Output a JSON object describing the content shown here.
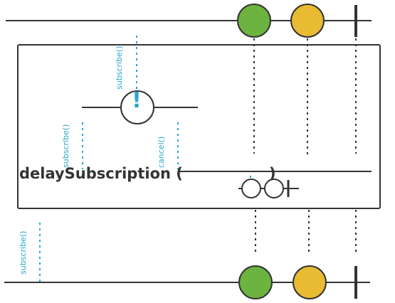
{
  "colors": {
    "line": "#333333",
    "signal": "#2aa6cf",
    "green": "#6db33f",
    "yellow": "#e8bb33",
    "white": "#ffffff"
  },
  "source": {
    "items": [
      "green",
      "yellow"
    ],
    "completes": true
  },
  "operator": {
    "name": "delaySubscription (",
    "close_paren": ")",
    "notifier_subscribe": "subscribe()",
    "trigger_subscribe": "subscribe()",
    "trigger_cancel": "cancel()",
    "exclamation": "!"
  },
  "result": {
    "items": [
      "green",
      "yellow"
    ],
    "completes": true,
    "subscribe": "subscribe()"
  }
}
